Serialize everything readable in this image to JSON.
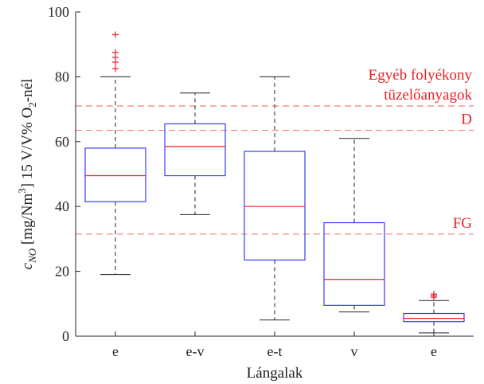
{
  "chart_data": {
    "type": "box",
    "xlabel": "Lángalak",
    "ylabel": {
      "parts": [
        {
          "text": "c",
          "style": "italic"
        },
        {
          "text": "NO",
          "style": "italic-sub"
        },
        {
          "text": " [mg/Nm",
          "style": "normal"
        },
        {
          "text": "3",
          "style": "sup"
        },
        {
          "text": "] 15 V/V% O",
          "style": "normal"
        },
        {
          "text": "2",
          "style": "sub"
        },
        {
          "text": "-nél",
          "style": "normal"
        }
      ]
    },
    "ylim": [
      0,
      100
    ],
    "yticks": [
      0,
      20,
      40,
      60,
      80,
      100
    ],
    "categories": [
      "e",
      "e-v",
      "e-t",
      "v",
      "e"
    ],
    "boxes": [
      {
        "label": "e",
        "whisker_low": 19,
        "q1": 41.5,
        "median": 49.5,
        "q3": 58,
        "whisker_high": 80,
        "outliers": [
          82.5,
          84.5,
          86,
          87.5,
          93
        ]
      },
      {
        "label": "e-v",
        "whisker_low": 37.5,
        "q1": 49.5,
        "median": 58.5,
        "q3": 65.5,
        "whisker_high": 75,
        "outliers": []
      },
      {
        "label": "e-t",
        "whisker_low": 5,
        "q1": 23.5,
        "median": 40,
        "q3": 57,
        "whisker_high": 80,
        "outliers": []
      },
      {
        "label": "v",
        "whisker_low": 7.5,
        "q1": 9.5,
        "median": 17.5,
        "q3": 35,
        "whisker_high": 61,
        "outliers": []
      },
      {
        "label": "e",
        "whisker_low": 1,
        "q1": 4.5,
        "median": 5.5,
        "q3": 7,
        "whisker_high": 11,
        "outliers": [
          12,
          12.5,
          13
        ]
      }
    ],
    "reference_lines": [
      {
        "value": 71,
        "label_lines": [
          "Egyéb folyékony",
          "tüzelőanyagok"
        ]
      },
      {
        "value": 63.5,
        "label_lines": [
          "D"
        ]
      },
      {
        "value": 31.5,
        "label_lines": [
          "FG"
        ]
      }
    ],
    "colors": {
      "box": "#3b3bff",
      "median": "#e8232a",
      "whisker": "#222222",
      "outlier": "#e8232a",
      "reference": "#f08080",
      "reference_text": "#e8232a",
      "axis": "#222222"
    }
  }
}
